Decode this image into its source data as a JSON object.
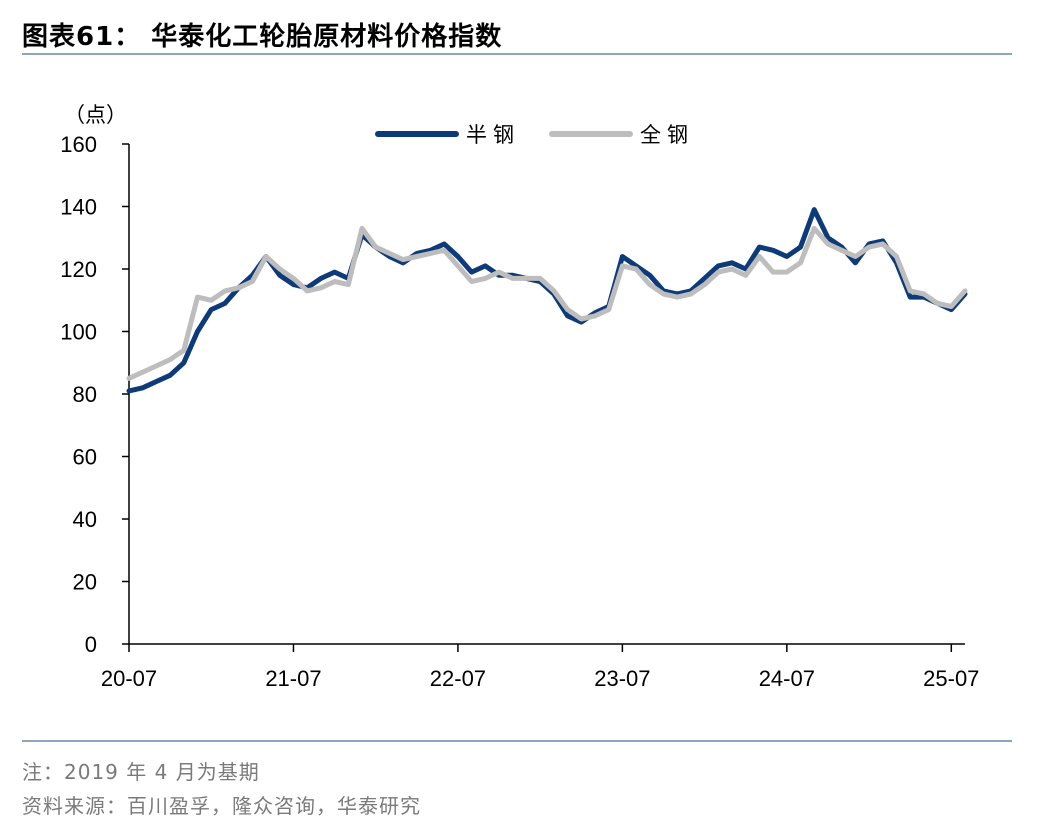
{
  "title": "图表61：  华泰化工轮胎原材料价格指数",
  "footnote": "注：2019 年 4 月为基期",
  "source": "资料来源：百川盈孚，隆众咨询，华泰研究",
  "chart_data": {
    "type": "line",
    "unit_label": "（点）",
    "ylim": [
      0,
      160
    ],
    "yticks": [
      0,
      20,
      40,
      60,
      80,
      100,
      120,
      140,
      160
    ],
    "xlim": [
      "2020-07",
      "2025-08"
    ],
    "xticks": [
      "20-07",
      "21-07",
      "22-07",
      "23-07",
      "24-07",
      "25-07"
    ],
    "legend_position": "top-center",
    "grid": false,
    "series": [
      {
        "name": "半钢",
        "color": "#0d3a78",
        "points": [
          [
            "2020-07",
            81
          ],
          [
            "2020-08",
            82
          ],
          [
            "2020-09",
            84
          ],
          [
            "2020-10",
            86
          ],
          [
            "2020-11",
            90
          ],
          [
            "2020-12",
            100
          ],
          [
            "2021-01",
            107
          ],
          [
            "2021-02",
            109
          ],
          [
            "2021-03",
            114
          ],
          [
            "2021-04",
            118
          ],
          [
            "2021-05",
            124
          ],
          [
            "2021-06",
            118
          ],
          [
            "2021-07",
            115
          ],
          [
            "2021-08",
            114
          ],
          [
            "2021-09",
            117
          ],
          [
            "2021-10",
            119
          ],
          [
            "2021-11",
            117
          ],
          [
            "2021-12",
            131
          ],
          [
            "2022-01",
            127
          ],
          [
            "2022-02",
            124
          ],
          [
            "2022-03",
            122
          ],
          [
            "2022-04",
            125
          ],
          [
            "2022-05",
            126
          ],
          [
            "2022-06",
            128
          ],
          [
            "2022-07",
            124
          ],
          [
            "2022-08",
            119
          ],
          [
            "2022-09",
            121
          ],
          [
            "2022-10",
            118
          ],
          [
            "2022-11",
            118
          ],
          [
            "2022-12",
            117
          ],
          [
            "2023-01",
            116
          ],
          [
            "2023-02",
            112
          ],
          [
            "2023-03",
            105
          ],
          [
            "2023-04",
            103
          ],
          [
            "2023-05",
            106
          ],
          [
            "2023-06",
            108
          ],
          [
            "2023-07",
            124
          ],
          [
            "2023-08",
            121
          ],
          [
            "2023-09",
            118
          ],
          [
            "2023-10",
            113
          ],
          [
            "2023-11",
            112
          ],
          [
            "2023-12",
            113
          ],
          [
            "2024-01",
            117
          ],
          [
            "2024-02",
            121
          ],
          [
            "2024-03",
            122
          ],
          [
            "2024-04",
            120
          ],
          [
            "2024-05",
            127
          ],
          [
            "2024-06",
            126
          ],
          [
            "2024-07",
            124
          ],
          [
            "2024-08",
            127
          ],
          [
            "2024-09",
            139
          ],
          [
            "2024-10",
            130
          ],
          [
            "2024-11",
            127
          ],
          [
            "2024-12",
            122
          ],
          [
            "2025-01",
            128
          ],
          [
            "2025-02",
            129
          ],
          [
            "2025-03",
            122
          ],
          [
            "2025-04",
            111
          ],
          [
            "2025-05",
            111
          ],
          [
            "2025-06",
            109
          ],
          [
            "2025-07",
            107
          ],
          [
            "2025-08",
            112
          ]
        ]
      },
      {
        "name": "全钢",
        "color": "#bdbdbd",
        "points": [
          [
            "2020-07",
            85
          ],
          [
            "2020-08",
            87
          ],
          [
            "2020-09",
            89
          ],
          [
            "2020-10",
            91
          ],
          [
            "2020-11",
            94
          ],
          [
            "2020-12",
            111
          ],
          [
            "2021-01",
            110
          ],
          [
            "2021-02",
            113
          ],
          [
            "2021-03",
            114
          ],
          [
            "2021-04",
            116
          ],
          [
            "2021-05",
            124
          ],
          [
            "2021-06",
            120
          ],
          [
            "2021-07",
            117
          ],
          [
            "2021-08",
            113
          ],
          [
            "2021-09",
            114
          ],
          [
            "2021-10",
            116
          ],
          [
            "2021-11",
            115
          ],
          [
            "2021-12",
            133
          ],
          [
            "2022-01",
            127
          ],
          [
            "2022-02",
            125
          ],
          [
            "2022-03",
            123
          ],
          [
            "2022-04",
            124
          ],
          [
            "2022-05",
            125
          ],
          [
            "2022-06",
            126
          ],
          [
            "2022-07",
            121
          ],
          [
            "2022-08",
            116
          ],
          [
            "2022-09",
            117
          ],
          [
            "2022-10",
            119
          ],
          [
            "2022-11",
            117
          ],
          [
            "2022-12",
            117
          ],
          [
            "2023-01",
            117
          ],
          [
            "2023-02",
            113
          ],
          [
            "2023-03",
            107
          ],
          [
            "2023-04",
            104
          ],
          [
            "2023-05",
            105
          ],
          [
            "2023-06",
            107
          ],
          [
            "2023-07",
            121
          ],
          [
            "2023-08",
            120
          ],
          [
            "2023-09",
            115
          ],
          [
            "2023-10",
            112
          ],
          [
            "2023-11",
            111
          ],
          [
            "2023-12",
            112
          ],
          [
            "2024-01",
            115
          ],
          [
            "2024-02",
            119
          ],
          [
            "2024-03",
            120
          ],
          [
            "2024-04",
            118
          ],
          [
            "2024-05",
            124
          ],
          [
            "2024-06",
            119
          ],
          [
            "2024-07",
            119
          ],
          [
            "2024-08",
            122
          ],
          [
            "2024-09",
            133
          ],
          [
            "2024-10",
            128
          ],
          [
            "2024-11",
            126
          ],
          [
            "2024-12",
            124
          ],
          [
            "2025-01",
            127
          ],
          [
            "2025-02",
            128
          ],
          [
            "2025-03",
            124
          ],
          [
            "2025-04",
            113
          ],
          [
            "2025-05",
            112
          ],
          [
            "2025-06",
            109
          ],
          [
            "2025-07",
            108
          ],
          [
            "2025-08",
            113
          ]
        ]
      }
    ]
  }
}
